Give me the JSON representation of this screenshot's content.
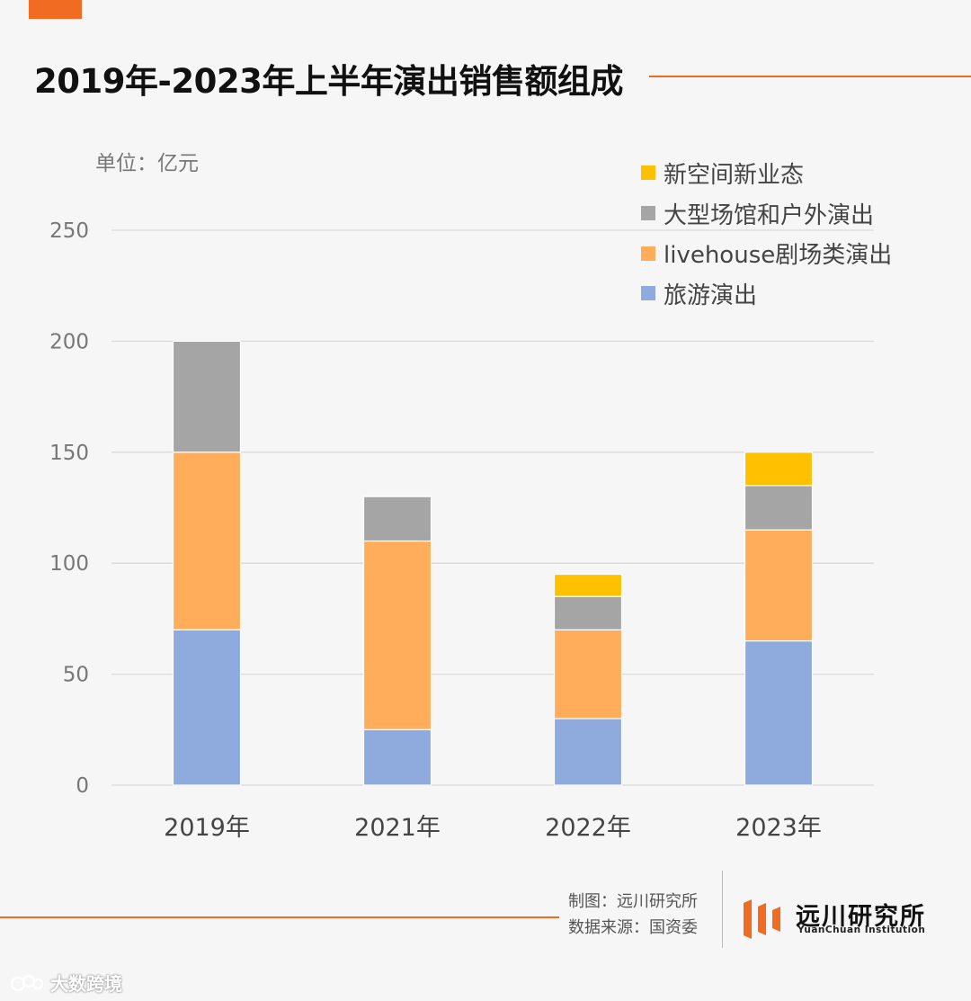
{
  "title": "2019年-2023年上半年演出销售额组成",
  "unit_label": "单位：亿元",
  "colors": {
    "accent": "#f26b22",
    "grid": "#d9d9d9",
    "series": [
      "#8faadc",
      "#ffad5a",
      "#a5a5a5",
      "#ffc000"
    ]
  },
  "legend": [
    {
      "name": "新空间新业态",
      "color": "#ffc000"
    },
    {
      "name": "大型场馆和户外演出",
      "color": "#a5a5a5"
    },
    {
      "name": "livehouse剧场类演出",
      "color": "#ffad5a"
    },
    {
      "name": "旅游演出",
      "color": "#8faadc"
    }
  ],
  "chart_data": {
    "type": "bar",
    "stacked": true,
    "title": "2019年-2023年上半年演出销售额组成",
    "ylabel": "单位：亿元",
    "ylim": [
      0,
      250
    ],
    "yticks": [
      0,
      50,
      100,
      150,
      200,
      250
    ],
    "grid": true,
    "legend_position": "top-right",
    "categories": [
      "2019年",
      "2021年",
      "2022年",
      "2023年"
    ],
    "series": [
      {
        "name": "旅游演出",
        "values": [
          70,
          25,
          30,
          65
        ]
      },
      {
        "name": "livehouse剧场类演出",
        "values": [
          80,
          85,
          40,
          50
        ]
      },
      {
        "name": "大型场馆和户外演出",
        "values": [
          50,
          20,
          15,
          20
        ]
      },
      {
        "name": "新空间新业态",
        "values": [
          0,
          0,
          10,
          15
        ]
      }
    ]
  },
  "footer": {
    "producer": "制图：远川研究所",
    "source": "数据来源：国资委",
    "logo_cn": "远川研究所",
    "logo_en": "YuanChuan Institution"
  },
  "watermark": "大数跨境"
}
